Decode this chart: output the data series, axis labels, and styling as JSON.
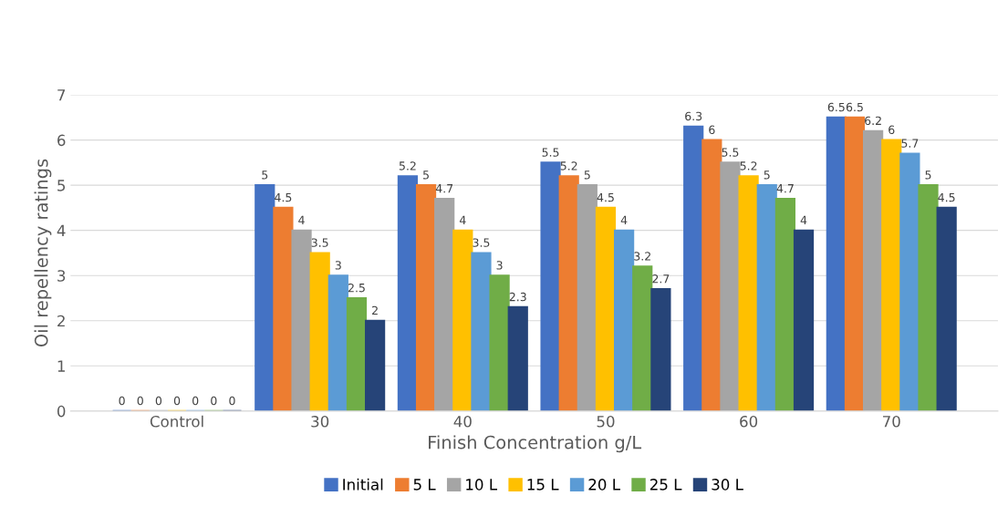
{
  "chart_data": {
    "type": "bar",
    "xlabel": "Finish Concentration g/L",
    "ylabel": "Oil repellency ratings",
    "categories": [
      "Control",
      "30",
      "40",
      "50",
      "60",
      "70"
    ],
    "series": [
      {
        "name": "Initial",
        "color": "#4472c4",
        "values": [
          0,
          5,
          5.2,
          5.5,
          6.3,
          6.5
        ]
      },
      {
        "name": "5 L",
        "color": "#ed7d31",
        "values": [
          0,
          4.5,
          5,
          5.2,
          6,
          6.5
        ]
      },
      {
        "name": "10 L",
        "color": "#a5a5a5",
        "values": [
          0,
          4,
          4.7,
          5,
          5.5,
          6.2
        ]
      },
      {
        "name": "15 L",
        "color": "#ffc000",
        "values": [
          0,
          3.5,
          4,
          4.5,
          5.2,
          6
        ]
      },
      {
        "name": "20 L",
        "color": "#5b9bd5",
        "values": [
          0,
          3,
          3.5,
          4,
          5,
          5.7
        ]
      },
      {
        "name": "25 L",
        "color": "#70ad47",
        "values": [
          0,
          2.5,
          3,
          3.2,
          4.7,
          5
        ]
      },
      {
        "name": "30 L",
        "color": "#264478",
        "values": [
          0,
          2,
          2.3,
          2.7,
          4,
          4.5
        ]
      }
    ],
    "ylim": [
      0,
      7
    ],
    "yticks": [
      0,
      1,
      2,
      3,
      4,
      5,
      6,
      7
    ],
    "grid": "y",
    "legend": "bottom",
    "data_labels": true
  }
}
